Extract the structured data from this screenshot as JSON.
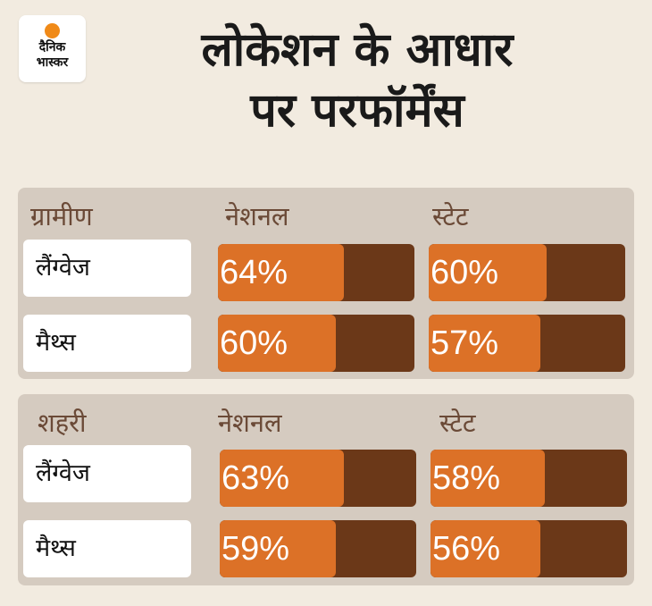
{
  "logo": {
    "line1": "दैनिक",
    "line2": "भास्कर"
  },
  "title": {
    "line1": "लोकेशन के आधार",
    "line2": "पर परफॉर्मेंस"
  },
  "chart_data": {
    "type": "bar",
    "columns": [
      "नेशनल",
      "स्टेट"
    ],
    "groups": [
      {
        "name": "ग्रामीण",
        "rows": [
          {
            "label": "लैंग्वेज",
            "national": 64,
            "national_label": "64%",
            "state": 60,
            "state_label": "60%"
          },
          {
            "label": "मैथ्स",
            "national": 60,
            "national_label": "60%",
            "state": 57,
            "state_label": "57%"
          }
        ]
      },
      {
        "name": "शहरी",
        "rows": [
          {
            "label": "लैंग्वेज",
            "national": 63,
            "national_label": "63%",
            "state": 58,
            "state_label": "58%"
          },
          {
            "label": "मैथ्स",
            "national": 59,
            "national_label": "59%",
            "state": 56,
            "state_label": "56%"
          }
        ]
      }
    ],
    "value_range": [
      0,
      100
    ],
    "colors": {
      "fill": "#dc7127",
      "track": "#6b3818",
      "header": "#6b4a37"
    }
  }
}
